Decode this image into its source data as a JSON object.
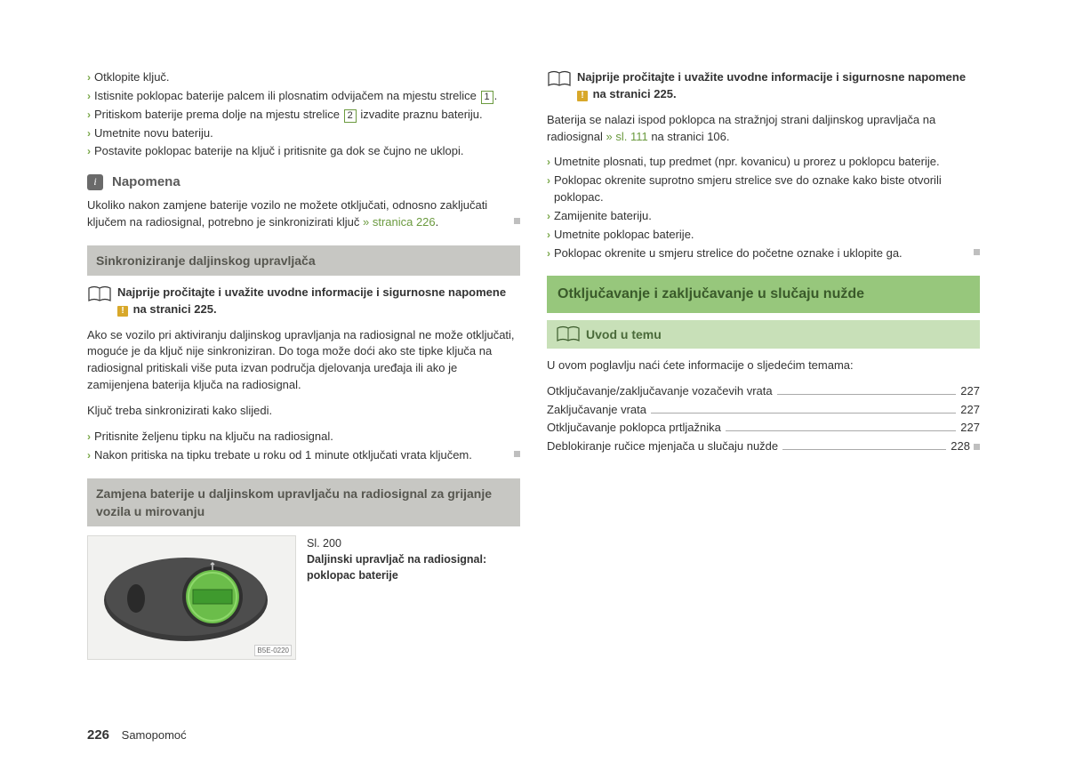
{
  "colors": {
    "accent_green": "#6b9a3f",
    "bar_green": "#97c77c",
    "sub_green": "#c8e0b8",
    "bar_gray": "#c7c7c3",
    "warn_yellow": "#d8a82a",
    "end_sq": "#bfbfbf",
    "text": "#333333"
  },
  "left": {
    "bullets1": [
      "Otklopite ključ.",
      "Istisnite poklopac baterije palcem ili plosnatim odvijačem na mjestu strelice {1}.",
      "Pritiskom baterije prema dolje na mjestu strelice {2} izvadite praznu bateriju.",
      "Umetnite novu bateriju.",
      "Postavite poklopac baterije na ključ i pritisnite ga dok se čujno ne uklopi."
    ],
    "note_title": "Napomena",
    "note_body": "Ukoliko nakon zamjene baterije vozilo ne možete otključati, odnosno zaključati ključem na radiosignal, potrebno je sinkronizirati ključ ",
    "note_link": "» stranica 226",
    "sec1_title": "Sinkroniziranje daljinskog upravljača",
    "read_first_a": "Najprije pročitajte i uvažite uvodne informacije i sigurnosne napomene ",
    "read_first_b": " na stranici 225.",
    "sync_para": "Ako se vozilo pri aktiviranju daljinskog upravljanja na radiosignal ne može otključati, moguće je da ključ nije sinkroniziran. Do toga može doći ako ste tipke ključa na radiosignal pritiskali više puta izvan područja djelovanja uređaja ili ako je zamijenjena baterija ključa na radiosignal.",
    "sync_intro": "Ključ treba sinkronizirati kako slijedi.",
    "sync_steps": [
      "Pritisnite željenu tipku na ključu na radiosignal.",
      "Nakon pritiska na tipku trebate u roku od 1 minute otključati vrata ključem."
    ],
    "sec2_title": "Zamjena baterije u daljinskom upravljaču na radiosignal za grijanje vozila u mirovanju",
    "fig_label": "Sl. 200",
    "fig_caption": "Daljinski upravljač na radiosignal: poklopac baterije",
    "fig_code": "B5E-0220"
  },
  "right": {
    "read_first_a": "Najprije pročitajte i uvažite uvodne informacije i sigurnosne napomene ",
    "read_first_b": " na stranici 225.",
    "batt_para_a": "Baterija se nalazi ispod poklopca na stražnjoj strani daljinskog upravljača na radiosignal ",
    "batt_link": "» sl. 111",
    "batt_para_b": " na stranici 106.",
    "steps": [
      "Umetnite plosnati, tup predmet (npr. kovanicu) u prorez u poklopcu baterije.",
      "Poklopac okrenite suprotno smjeru strelice sve do oznake kako biste otvorili poklopac.",
      "Zamijenite bateriju.",
      "Umetnite poklopac baterije.",
      "Poklopac okrenite u smjeru strelice do početne oznake i uklopite ga."
    ],
    "green_title": "Otključavanje i zaključavanje u slučaju nužde",
    "sub_title": "Uvod u temu",
    "toc_intro": "U ovom poglavlju naći ćete informacije o sljedećim temama:",
    "toc": [
      {
        "label": "Otključavanje/zaključavanje vozačevih vrata",
        "page": "227"
      },
      {
        "label": "Zaključavanje vrata",
        "page": "227"
      },
      {
        "label": "Otključavanje poklopca prtljažnika",
        "page": "227"
      },
      {
        "label": "Deblokiranje ručice mjenjača u slučaju nužde",
        "page": "228"
      }
    ]
  },
  "footer": {
    "page": "226",
    "section": "Samopomoć"
  }
}
